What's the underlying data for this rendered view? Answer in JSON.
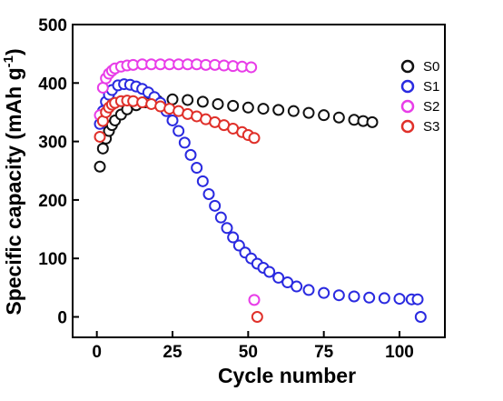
{
  "chart_data": {
    "type": "scatter",
    "xlabel": "Cycle number",
    "ylabel_main": "Specific capacity (mAh g",
    "ylabel_sup": "-1",
    "ylabel_close": ")",
    "xlim": [
      -8,
      115
    ],
    "ylim": [
      -35,
      500
    ],
    "xticks": [
      0,
      25,
      50,
      75,
      100
    ],
    "yticks": [
      0,
      100,
      200,
      300,
      400,
      500
    ],
    "grid": false,
    "legend_position": "top-right",
    "marker": "open-circle",
    "series": [
      {
        "name": "S0",
        "color": "#111111",
        "x": [
          1,
          2,
          3,
          4,
          5,
          6,
          8,
          10,
          13,
          16,
          20,
          25,
          30,
          35,
          40,
          45,
          50,
          55,
          60,
          65,
          70,
          75,
          80,
          85,
          88,
          91
        ],
        "y": [
          257,
          288,
          305,
          318,
          328,
          336,
          346,
          355,
          362,
          367,
          370,
          372,
          371,
          368,
          364,
          361,
          358,
          356,
          354,
          352,
          349,
          345,
          341,
          337,
          335,
          333
        ]
      },
      {
        "name": "S1",
        "color": "#2a2ae0",
        "x": [
          1,
          2,
          3,
          4,
          5,
          7,
          9,
          11,
          13,
          15,
          17,
          19,
          21,
          23,
          25,
          27,
          29,
          31,
          33,
          35,
          37,
          39,
          41,
          43,
          45,
          47,
          49,
          51,
          53,
          55,
          57,
          60,
          63,
          66,
          70,
          75,
          80,
          85,
          90,
          95,
          100,
          104,
          106,
          107
        ],
        "y": [
          330,
          352,
          368,
          380,
          388,
          396,
          398,
          397,
          394,
          390,
          384,
          376,
          366,
          352,
          336,
          318,
          298,
          277,
          255,
          232,
          210,
          190,
          170,
          152,
          136,
          122,
          110,
          100,
          91,
          84,
          77,
          67,
          59,
          52,
          46,
          41,
          37,
          35,
          33,
          32,
          31,
          30,
          30,
          0
        ]
      },
      {
        "name": "S2",
        "color": "#e83de8",
        "x": [
          1,
          2,
          3,
          4,
          5,
          6,
          8,
          10,
          12,
          15,
          18,
          21,
          24,
          27,
          30,
          33,
          36,
          39,
          42,
          45,
          48,
          51,
          52
        ],
        "y": [
          345,
          392,
          408,
          416,
          421,
          425,
          428,
          430,
          431,
          432,
          432,
          432,
          432,
          432,
          432,
          432,
          431,
          431,
          430,
          429,
          428,
          427,
          29
        ]
      },
      {
        "name": "S3",
        "color": "#e0302a",
        "x": [
          1,
          2,
          3,
          4,
          5,
          6,
          8,
          10,
          12,
          15,
          18,
          21,
          24,
          27,
          30,
          33,
          36,
          39,
          42,
          45,
          48,
          50,
          52,
          53
        ],
        "y": [
          308,
          335,
          350,
          358,
          363,
          366,
          369,
          370,
          369,
          367,
          364,
          360,
          356,
          352,
          347,
          343,
          338,
          333,
          328,
          322,
          316,
          311,
          306,
          0
        ]
      }
    ]
  }
}
